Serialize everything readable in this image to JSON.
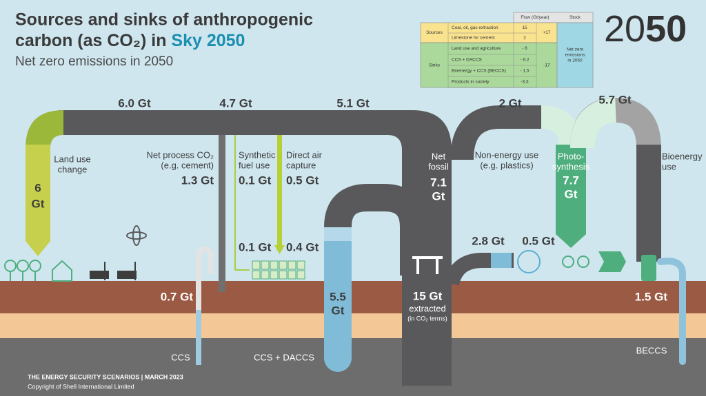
{
  "header": {
    "title_lines": [
      "Sources and sinks of anthropogenic",
      "carbon (as CO₂) in "
    ],
    "title_highlight": "Sky 2050",
    "subtitle": "Net zero emissions in 2050",
    "logo_light": "20",
    "logo_bold": "50"
  },
  "table": {
    "headers": [
      "Flow (Gt/year)",
      "Stock"
    ],
    "sources": {
      "label": "Sources",
      "rows": [
        [
          "Coal, oil, gas extraction",
          "15"
        ],
        [
          "Limestone for cement",
          "2"
        ]
      ],
      "total": "+17"
    },
    "sinks": {
      "label": "Sinks",
      "rows": [
        [
          "Land use and agriculture",
          "- 6"
        ],
        [
          "CCS + DACCS",
          "- 6.2"
        ],
        [
          "Bioenergy + CCS (BECCS)",
          "- 1.5"
        ],
        [
          "Products in society",
          "-3.3"
        ]
      ],
      "total": "-17"
    },
    "stock": [
      "Net zero",
      "emissions",
      "in 2050"
    ]
  },
  "flows": [
    "6.0 Gt",
    "4.7 Gt",
    "5.1 Gt",
    "2 Gt",
    "5.7 Gt"
  ],
  "labels": {
    "land_use": {
      "name": [
        "Land use",
        "change"
      ],
      "amount": [
        "6",
        "Gt"
      ]
    },
    "net_process": {
      "name": [
        "Net process CO₂",
        "(e.g. cement)"
      ],
      "amount": "1.3 Gt"
    },
    "synthetic_fuel": {
      "name": [
        "Synthetic",
        "fuel use"
      ],
      "amount": "0.1 Gt",
      "lower": "0.1 Gt"
    },
    "dac": {
      "name": [
        "Direct air",
        "capture"
      ],
      "amount": "0.5 Gt",
      "lower": "0.4 Gt"
    },
    "net_fossil": {
      "name": [
        "Net",
        "fossil"
      ],
      "amount": [
        "7.1",
        "Gt"
      ]
    },
    "non_energy": {
      "name": [
        "Non-energy use",
        "(e.g. plastics)"
      ],
      "flow_in": "2.8 Gt",
      "flow_out": "0.5 Gt"
    },
    "photosynthesis": {
      "name": [
        "Photo-",
        "synthesis"
      ],
      "amount": [
        "7.7",
        "Gt"
      ]
    },
    "bioenergy": {
      "name": [
        "Bioenergy",
        "use"
      ]
    },
    "ccs": {
      "amount": "0.7 Gt",
      "name": "CCS"
    },
    "ccs_daccs": {
      "amount": [
        "5.5",
        "Gt"
      ],
      "name": "CCS + DACCS"
    },
    "extraction": {
      "amount": "15 Gt",
      "name": "extracted",
      "note": "(in CO₂ terms)"
    },
    "beccs": {
      "amount": "1.5 Gt",
      "name": "BECCS"
    }
  },
  "footer": {
    "line1": "THE ENERGY SECURITY SCENARIOS  |  MARCH 2023",
    "line2": "Copyright of Shell International Limited"
  }
}
